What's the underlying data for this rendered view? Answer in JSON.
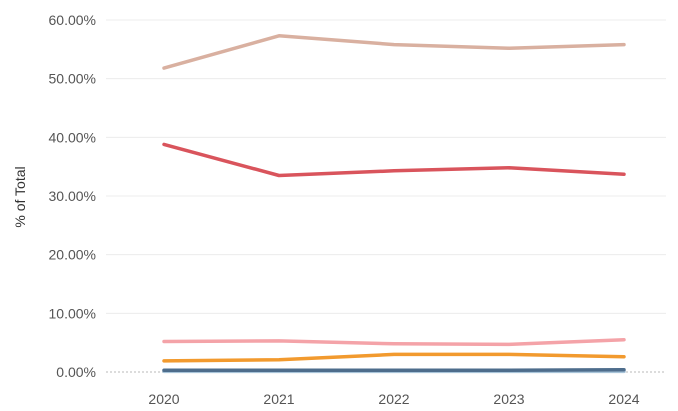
{
  "chart_data": {
    "type": "line",
    "title": "",
    "xlabel": "",
    "ylabel": "% of Total",
    "x": [
      "2020",
      "2021",
      "2022",
      "2023",
      "2024"
    ],
    "y_ticks": [
      "0.00%",
      "10.00%",
      "20.00%",
      "30.00%",
      "40.00%",
      "50.00%",
      "60.00%"
    ],
    "ylim": [
      0,
      60
    ],
    "grid": true,
    "legend": "none",
    "series": [
      {
        "color": "#d9b0a0",
        "values": [
          51.8,
          57.3,
          55.8,
          55.2,
          55.8
        ]
      },
      {
        "color": "#d9545c",
        "values": [
          38.8,
          33.5,
          34.3,
          34.8,
          33.7
        ]
      },
      {
        "color": "#f4a3a8",
        "values": [
          5.2,
          5.3,
          4.8,
          4.7,
          5.5
        ]
      },
      {
        "color": "#f29a2e",
        "values": [
          1.9,
          2.1,
          3.0,
          3.0,
          2.6
        ]
      },
      {
        "color": "#4e6d8c",
        "values": [
          0.3,
          0.3,
          0.3,
          0.3,
          0.4
        ]
      },
      {
        "color": "#a8c4d9",
        "values": [
          0.1,
          0.1,
          0.1,
          0.1,
          0.1
        ]
      }
    ]
  }
}
